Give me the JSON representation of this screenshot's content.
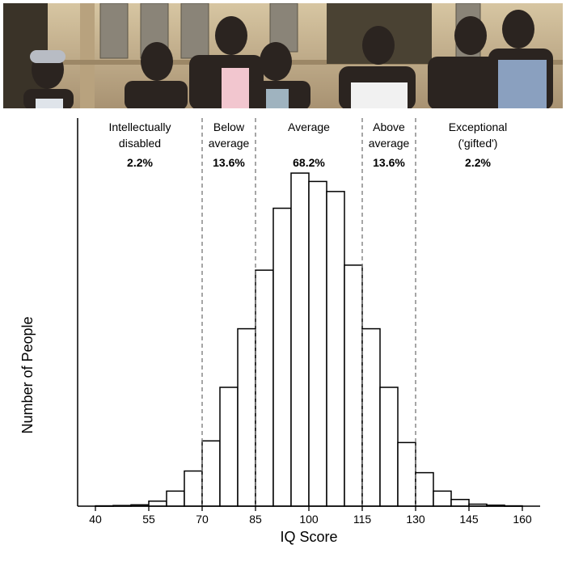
{
  "photo": {
    "subject": "group of young men smiling in front of a stone building with leaded windows",
    "colors": {
      "stone": "#c9b48f",
      "shadow": "#3a3328",
      "window": "#8a8478",
      "sky": "#e6e0d2"
    }
  },
  "chart_data": {
    "type": "bar",
    "title": "",
    "xlabel": "IQ Score",
    "ylabel": "Number of People",
    "xlim": [
      35,
      165
    ],
    "ylim": [
      0,
      100
    ],
    "x_ticks": [
      40,
      55,
      70,
      85,
      100,
      115,
      130,
      145,
      160
    ],
    "bin_width": 5,
    "bins_start": [
      40,
      45,
      50,
      55,
      60,
      65,
      70,
      75,
      80,
      85,
      90,
      95,
      100,
      105,
      110,
      115,
      120,
      125,
      130,
      135,
      140,
      145,
      150,
      155
    ],
    "values": [
      0.1,
      0.2,
      0.4,
      1.5,
      4.5,
      10.5,
      19.5,
      35.5,
      53,
      70.5,
      89,
      99.5,
      97,
      94,
      72,
      53,
      35.5,
      19,
      10,
      4.5,
      2,
      0.6,
      0.3,
      0.1
    ],
    "boundaries": [
      70,
      85,
      115,
      130
    ],
    "regions": [
      {
        "label": "Intellectually disabled",
        "percent": "2.2%",
        "range": [
          35,
          70
        ]
      },
      {
        "label": "Below average",
        "percent": "13.6%",
        "range": [
          70,
          85
        ]
      },
      {
        "label": "Average",
        "percent": "68.2%",
        "range": [
          85,
          115
        ]
      },
      {
        "label": "Above average",
        "percent": "13.6%",
        "range": [
          115,
          130
        ]
      },
      {
        "label": "Exceptional ('gifted')",
        "percent": "2.2%",
        "range": [
          130,
          165
        ]
      }
    ],
    "region_label_lines": [
      [
        "Intellectually",
        "disabled"
      ],
      [
        "Below",
        "average"
      ],
      [
        "Average"
      ],
      [
        "Above",
        "average"
      ],
      [
        "Exceptional",
        "('gifted')"
      ]
    ],
    "colors": {
      "bar_fill": "#ffffff",
      "bar_stroke": "#000000",
      "boundary_line": "#777777",
      "axis": "#000000"
    },
    "grid": false,
    "legend": "none"
  }
}
